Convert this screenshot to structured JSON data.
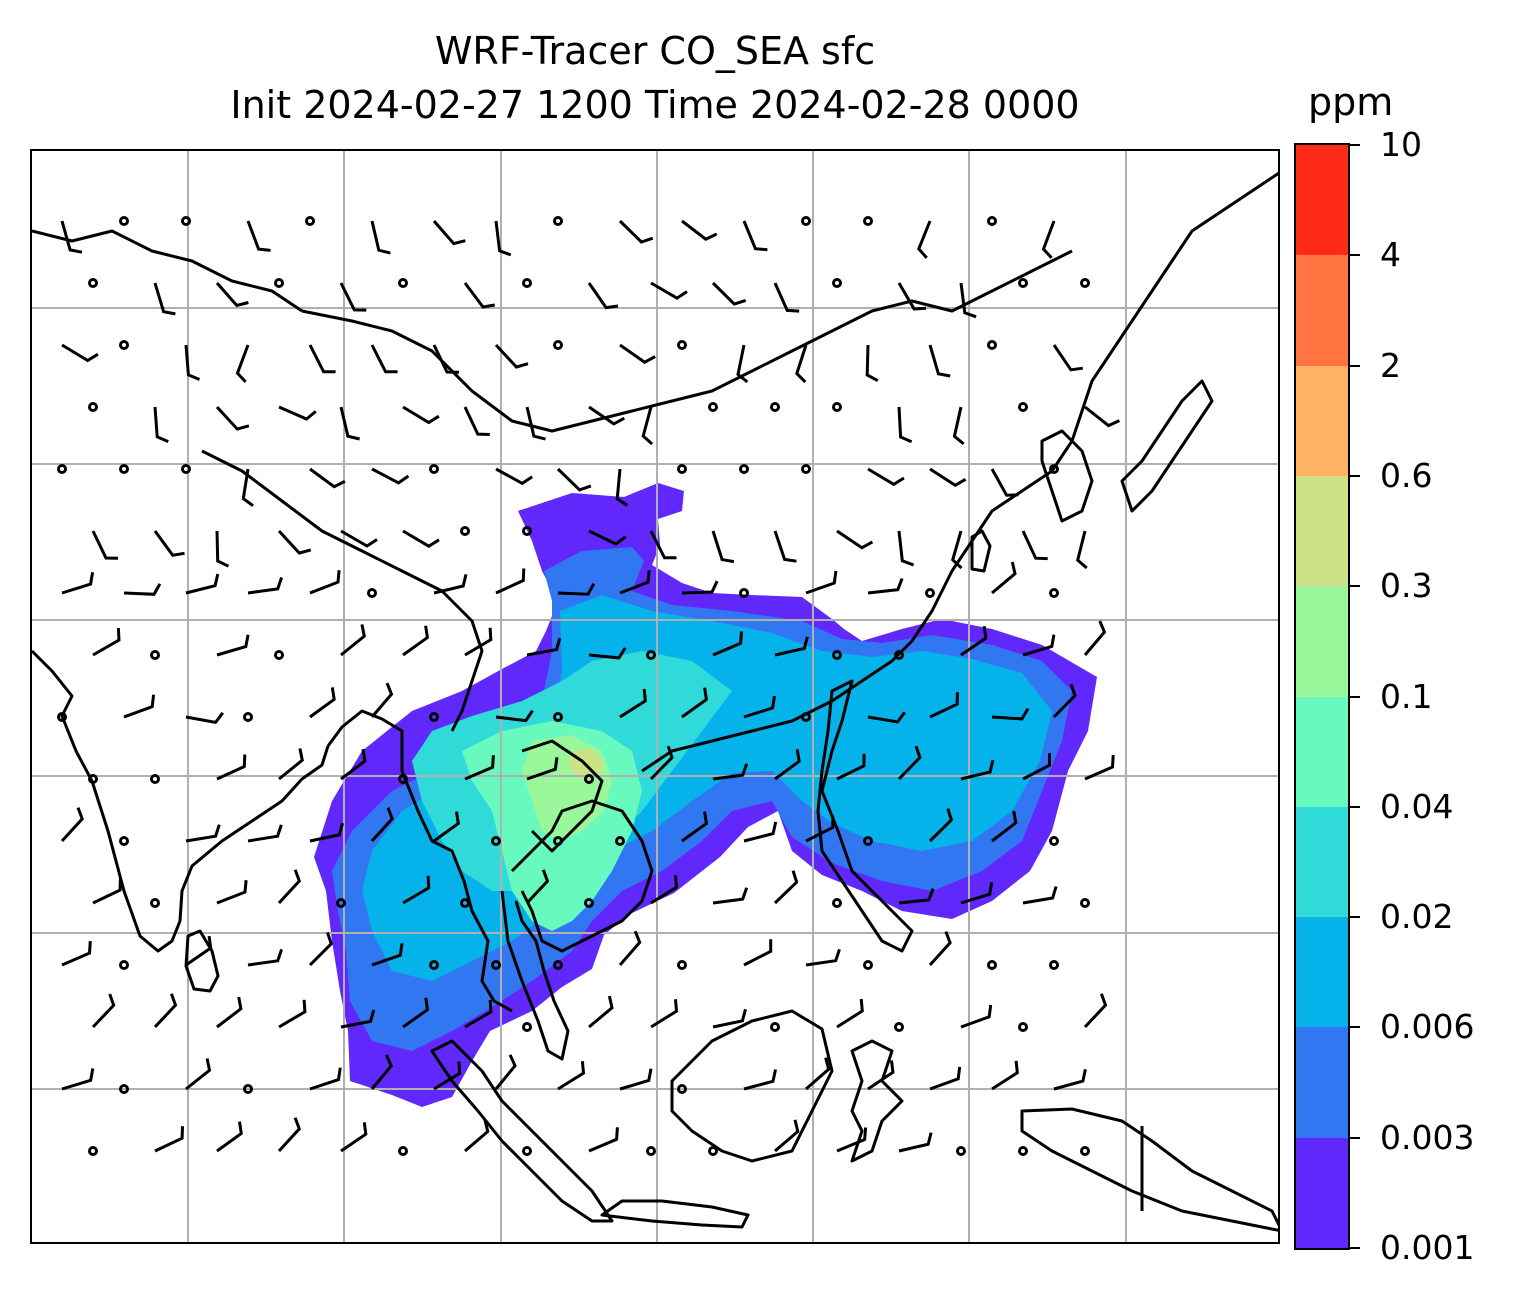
{
  "title": {
    "line1": "WRF-Tracer CO_SEA sfc",
    "line2": "Init 2024-02-27 1200 Time 2024-02-28 0000"
  },
  "colorbar": {
    "unit": "ppm",
    "levels": [
      "0.001",
      "0.003",
      "0.006",
      "0.02",
      "0.04",
      "0.1",
      "0.3",
      "0.6",
      "2",
      "4",
      "10"
    ],
    "colors": [
      "#6128fb",
      "#3277f2",
      "#06b2ea",
      "#2fdad9",
      "#67f9be",
      "#9af79a",
      "#cde286",
      "#ffb164",
      "#ff7440",
      "#ff2a17"
    ]
  },
  "map": {
    "gridlines": true,
    "gridline_color": "#b0b0b0",
    "coastline_color": "#000000",
    "wind_barb_color": "#000000",
    "calm_marker": "circle"
  }
}
